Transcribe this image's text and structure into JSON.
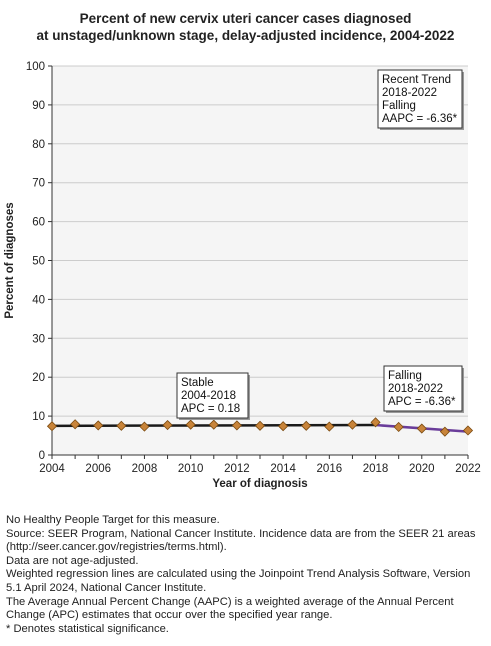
{
  "chart_data": {
    "type": "line",
    "title_lines": [
      "Percent of new cervix uteri cancer cases diagnosed",
      "at unstaged/unknown stage, delay-adjusted incidence, 2004-2022"
    ],
    "xlabel": "Year of diagnosis",
    "ylabel": "Percent of diagnoses",
    "xlim": [
      2004,
      2022
    ],
    "ylim": [
      0,
      100
    ],
    "x_ticks": [
      "2004",
      "2006",
      "2008",
      "2010",
      "2012",
      "2014",
      "2016",
      "2018",
      "2020",
      "2022"
    ],
    "y_ticks": [
      "0",
      "10",
      "20",
      "30",
      "40",
      "50",
      "60",
      "70",
      "80",
      "90",
      "100"
    ],
    "grid": true,
    "observed": {
      "x": [
        2004,
        2005,
        2006,
        2007,
        2008,
        2009,
        2010,
        2011,
        2012,
        2013,
        2014,
        2015,
        2016,
        2017,
        2018,
        2019,
        2020,
        2021,
        2022
      ],
      "y": [
        7.4,
        7.9,
        7.6,
        7.5,
        7.3,
        7.7,
        7.8,
        7.8,
        7.6,
        7.5,
        7.4,
        7.5,
        7.3,
        7.8,
        8.4,
        7.2,
        6.8,
        6.0,
        6.3
      ]
    },
    "trend_segments": [
      {
        "x": [
          2004,
          2018
        ],
        "y": [
          7.5,
          7.7
        ],
        "color": "#1a1a1a"
      },
      {
        "x": [
          2018,
          2022
        ],
        "y": [
          7.7,
          6.0
        ],
        "color": "#6a3d9a"
      }
    ],
    "annotations": [
      {
        "lines": [
          "Recent Trend",
          "2018-2022",
          "Falling",
          "AAPC = -6.36*"
        ]
      },
      {
        "lines": [
          "Stable",
          "2004-2018",
          "APC =  0.18"
        ]
      },
      {
        "lines": [
          "Falling",
          "2018-2022",
          "APC = -6.36*"
        ]
      }
    ],
    "colors": {
      "marker_fill": "#c8843a",
      "marker_stroke": "#7a4a10",
      "plot_bg": "#f5f5f5",
      "grid": "#cccccc"
    }
  },
  "notes": [
    "No Healthy People Target for this measure.",
    "Source: SEER Program, National Cancer Institute. Incidence data are from the SEER 21 areas (http://seer.cancer.gov/registries/terms.html).",
    "Data are not age-adjusted.",
    "Weighted regression lines are calculated using the Joinpoint Trend Analysis Software, Version 5.1 April 2024, National Cancer Institute.",
    "The Average Annual Percent Change (AAPC) is a weighted average of the Annual Percent Change (APC) estimates that occur over the specified year range.",
    "* Denotes statistical significance."
  ]
}
